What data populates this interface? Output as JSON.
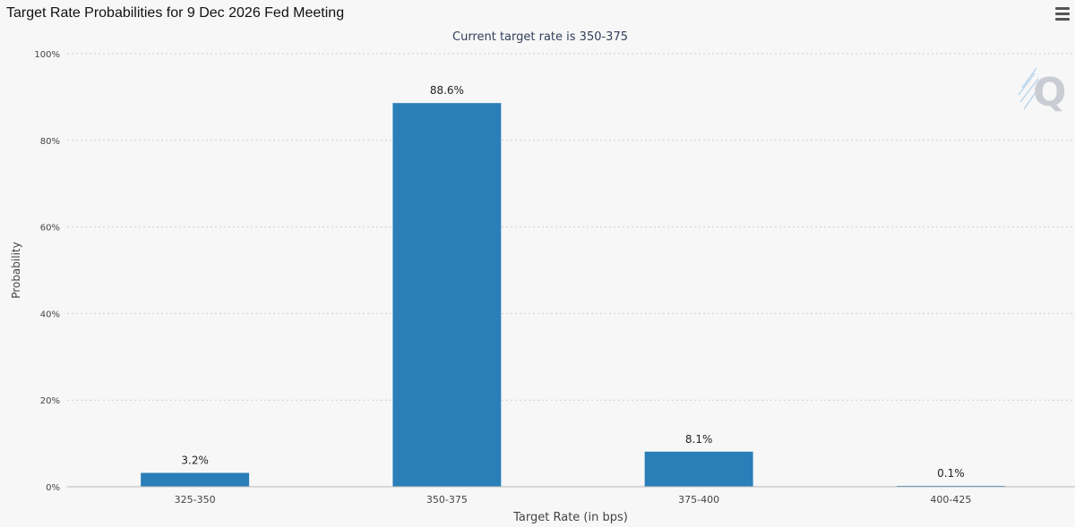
{
  "header": {
    "title": "Target Rate Probabilities for 9 Dec 2026 Fed Meeting",
    "menu_icon": "hamburger-menu-icon"
  },
  "chart_data": {
    "type": "bar",
    "title": "Target Rate Probabilities for 9 Dec 2026 Fed Meeting",
    "subtitle": "Current target rate is 350-375",
    "xlabel": "Target Rate (in bps)",
    "ylabel": "Probability",
    "categories": [
      "325-350",
      "350-375",
      "375-400",
      "400-425"
    ],
    "values": [
      3.2,
      88.6,
      8.1,
      0.1
    ],
    "data_labels": [
      "3.2%",
      "88.6%",
      "8.1%",
      "0.1%"
    ],
    "ylim": [
      0,
      100
    ],
    "yticks": [
      0,
      20,
      40,
      60,
      80,
      100
    ],
    "ytick_labels": [
      "0%",
      "20%",
      "40%",
      "60%",
      "80%",
      "100%"
    ],
    "grid": true,
    "legend": "none",
    "bar_color": "#2a7fb8",
    "watermark_icon": "quikstrike-q-logo-icon"
  }
}
